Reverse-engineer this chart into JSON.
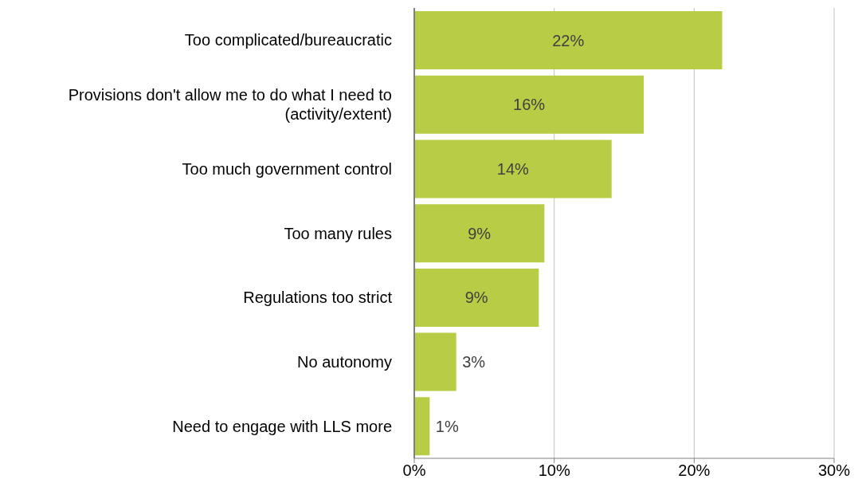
{
  "chart_data": {
    "type": "bar",
    "orientation": "horizontal",
    "categories": [
      "Too complicated/bureaucratic",
      "Provisions don't allow me to do what I need to (activity/extent)",
      "Too much government control",
      "Too many rules",
      "Regulations too strict",
      "No autonomy",
      "Need to engage with LLS more"
    ],
    "values": [
      22,
      16.4,
      14.1,
      9.3,
      8.9,
      3,
      1.1
    ],
    "value_labels": [
      "22%",
      "16%",
      "14%",
      "9%",
      "9%",
      "3%",
      "1%"
    ],
    "color": "#b8cc45",
    "xlim": [
      0,
      30
    ],
    "xticks": [
      {
        "value": 0,
        "label": "0%"
      },
      {
        "value": 10,
        "label": "10%"
      },
      {
        "value": 20,
        "label": "20%"
      },
      {
        "value": 30,
        "label": "30%"
      }
    ],
    "grid": "x"
  }
}
